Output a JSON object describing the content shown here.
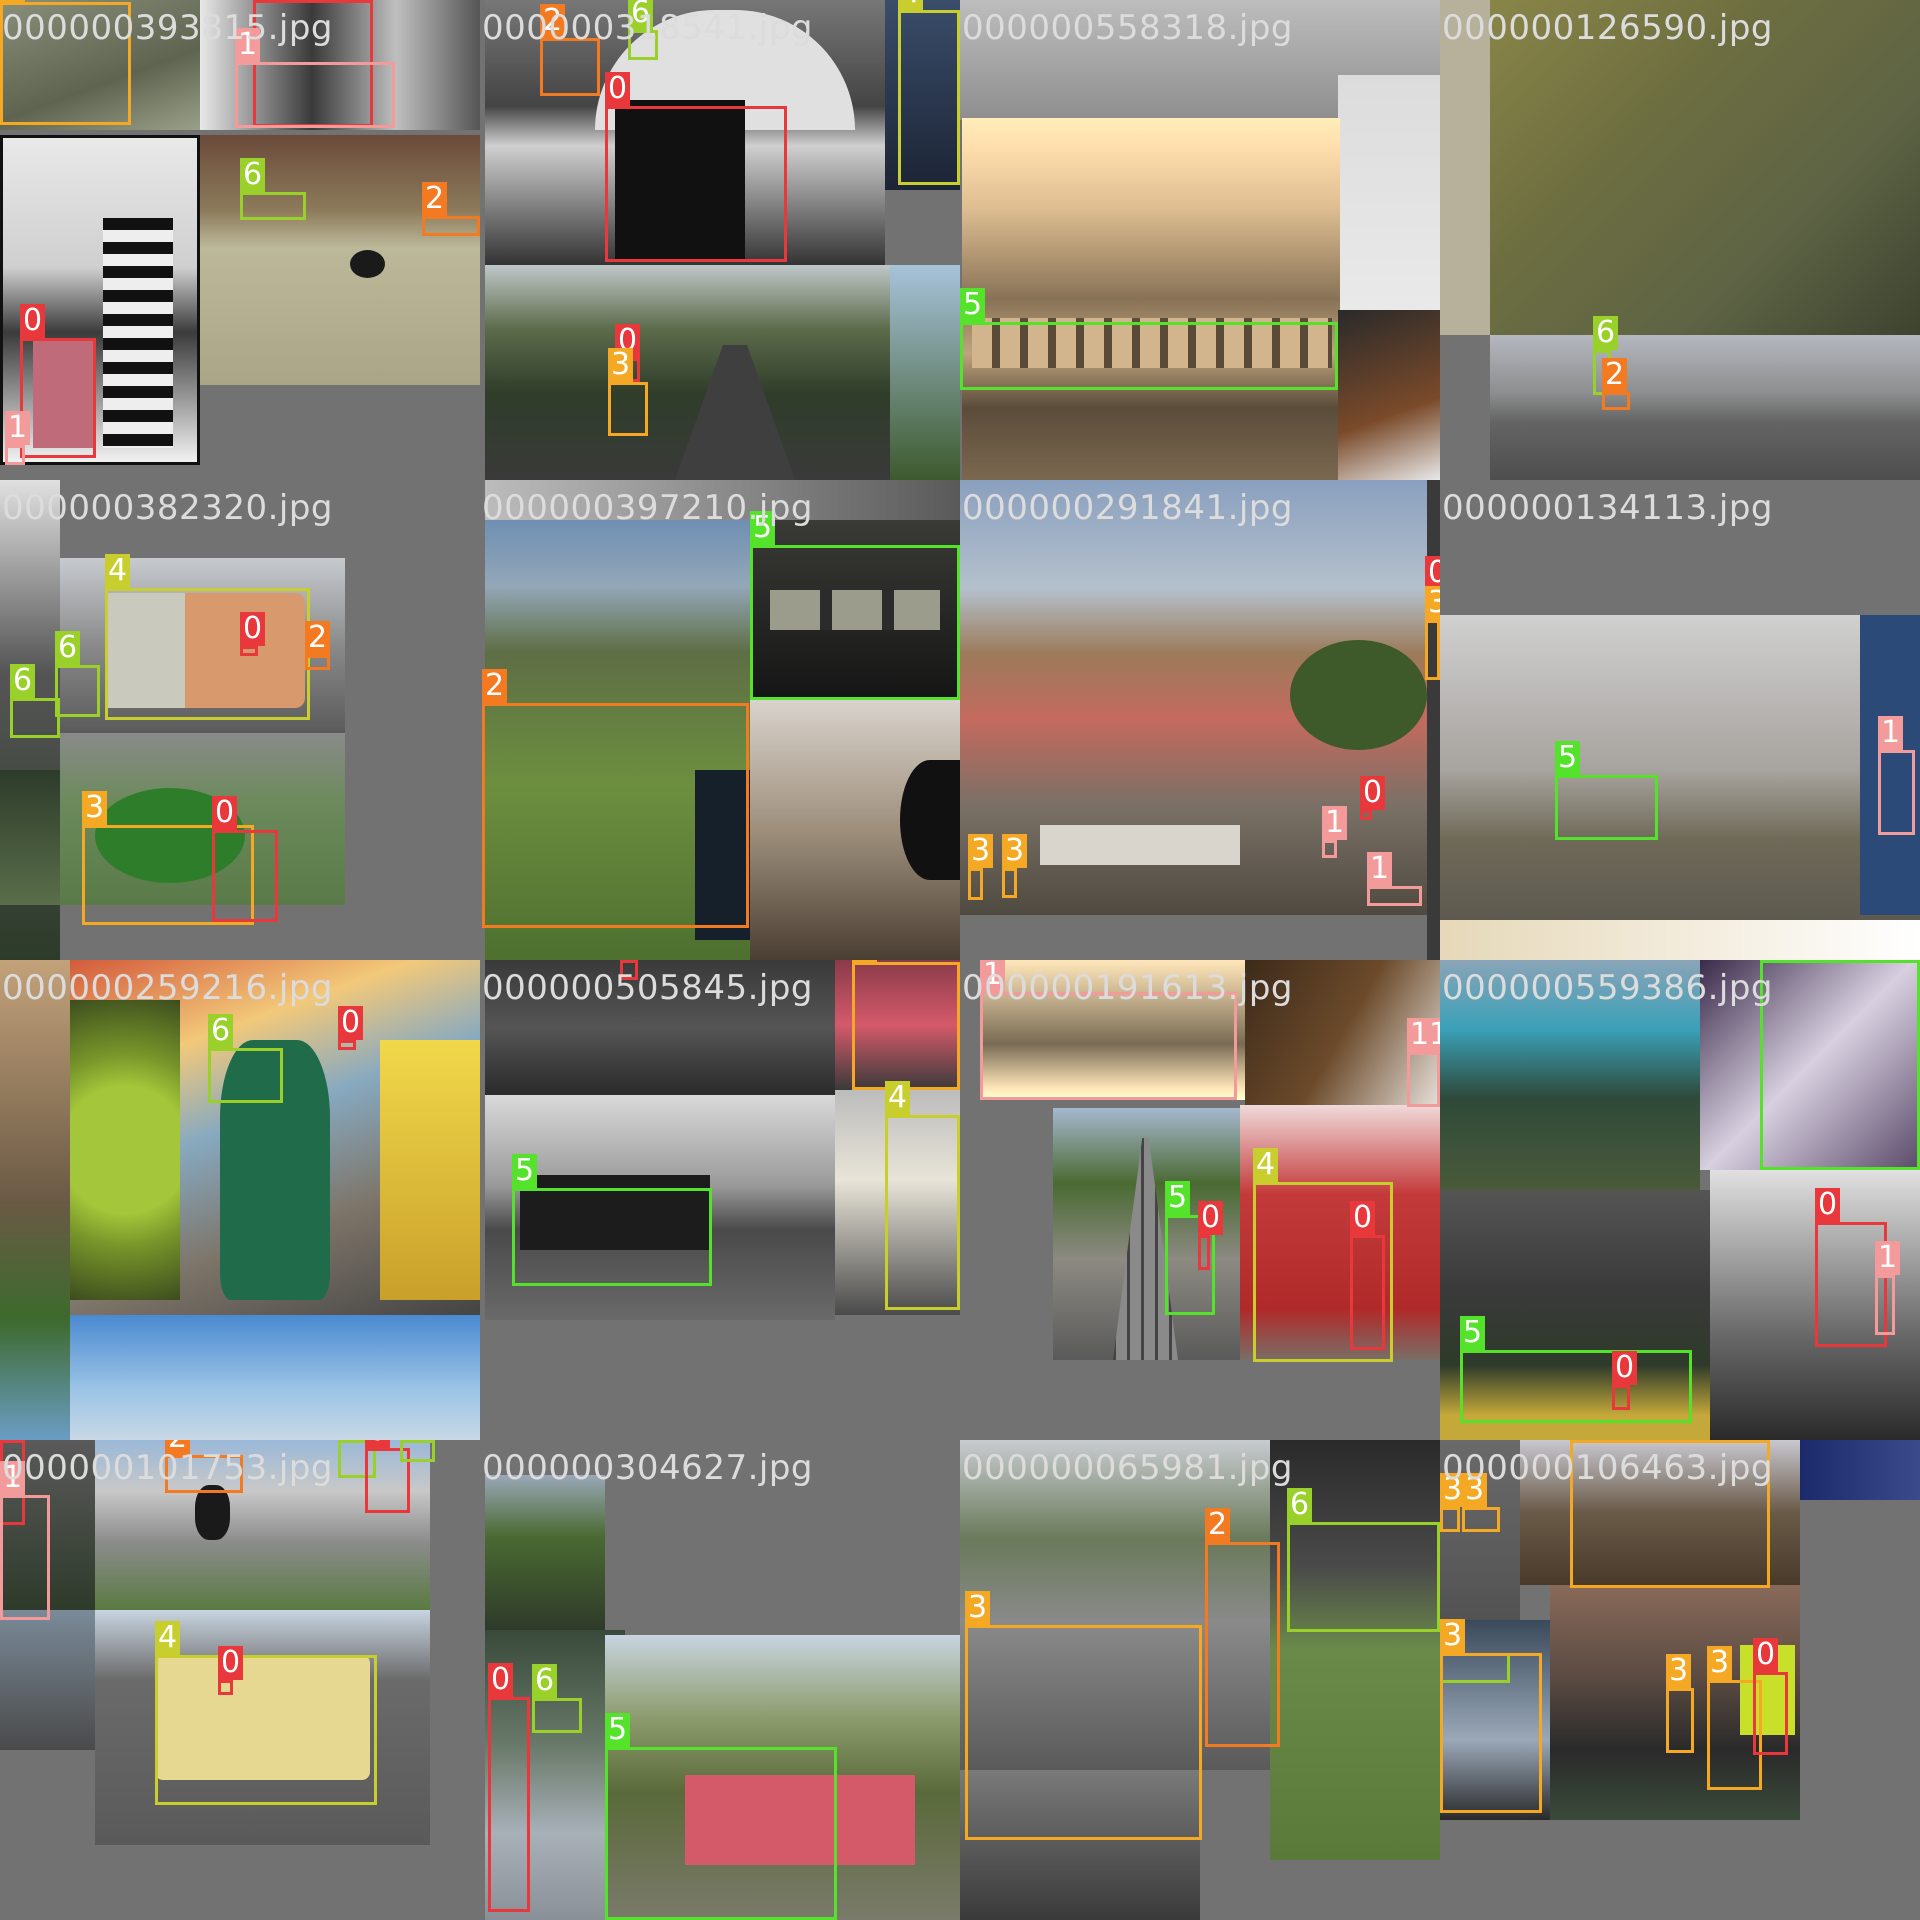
{
  "class_colors": {
    "0": "#e8383b",
    "1": "#f39a9a",
    "2": "#f47a22",
    "3": "#f4a823",
    "4": "#c8ce2e",
    "5": "#55e22a",
    "6": "#9ad02a"
  },
  "tiles": [
    {
      "name": "000000393815.jpg",
      "labels": [
        "3",
        "0",
        "1",
        "6",
        "2",
        "0",
        "1"
      ]
    },
    {
      "name": "000000318541.jpg",
      "labels": [
        "2",
        "6",
        "4",
        "0",
        "0",
        "3"
      ]
    },
    {
      "name": "000000558318.jpg",
      "labels": [
        "5"
      ]
    },
    {
      "name": "000000126590.jpg",
      "labels": [
        "6",
        "2"
      ]
    },
    {
      "name": "000000382320.jpg",
      "labels": [
        "4",
        "0",
        "2",
        "6",
        "6",
        "3",
        "0"
      ]
    },
    {
      "name": "000000397210.jpg",
      "labels": [
        "5",
        "2"
      ]
    },
    {
      "name": "000000291841.jpg",
      "labels": [
        "0",
        "3",
        "0",
        "1",
        "1",
        "3",
        "3"
      ]
    },
    {
      "name": "000000134113.jpg",
      "labels": [
        "5",
        "1"
      ]
    },
    {
      "name": "000000259216.jpg",
      "labels": [
        "6",
        "0"
      ]
    },
    {
      "name": "000000505845.jpg",
      "labels": [
        "0",
        "3",
        "4",
        "5"
      ]
    },
    {
      "name": "000000191613.jpg",
      "labels": [
        "1",
        "11",
        "4",
        "5",
        "0",
        "0"
      ]
    },
    {
      "name": "000000559386.jpg",
      "labels": [
        "5",
        "0",
        "1",
        "5",
        "0"
      ]
    },
    {
      "name": "000000101753.jpg",
      "labels": [
        "0",
        "1",
        "2",
        "6",
        "0",
        "6",
        "4",
        "0"
      ]
    },
    {
      "name": "000000304627.jpg",
      "labels": [
        "0",
        "6",
        "5"
      ]
    },
    {
      "name": "000000065981.jpg",
      "labels": [
        "2",
        "6",
        "3"
      ]
    },
    {
      "name": "000000106463.jpg",
      "labels": [
        "3",
        "3",
        "3",
        "6",
        "3",
        "3",
        "3",
        "0"
      ]
    }
  ]
}
